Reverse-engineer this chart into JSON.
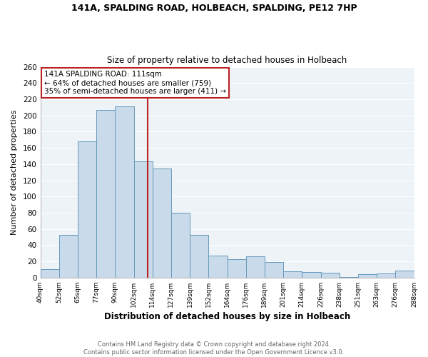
{
  "title1": "141A, SPALDING ROAD, HOLBEACH, SPALDING, PE12 7HP",
  "title2": "Size of property relative to detached houses in Holbeach",
  "xlabel": "Distribution of detached houses by size in Holbeach",
  "ylabel": "Number of detached properties",
  "bar_labels": [
    "40sqm",
    "52sqm",
    "65sqm",
    "77sqm",
    "90sqm",
    "102sqm",
    "114sqm",
    "127sqm",
    "139sqm",
    "152sqm",
    "164sqm",
    "176sqm",
    "189sqm",
    "201sqm",
    "214sqm",
    "226sqm",
    "238sqm",
    "251sqm",
    "263sqm",
    "276sqm",
    "288sqm"
  ],
  "bar_values": [
    10,
    53,
    168,
    207,
    211,
    143,
    135,
    80,
    53,
    27,
    23,
    26,
    19,
    8,
    7,
    6,
    1,
    4,
    5,
    9
  ],
  "bar_color": "#c9daea",
  "bar_edge_color": "#6699bb",
  "property_line_label": "141A SPALDING ROAD: 111sqm",
  "annotation_line1": "← 64% of detached houses are smaller (759)",
  "annotation_line2": "35% of semi-detached houses are larger (411) →",
  "box_color": "#bb2222",
  "sqm_edges": [
    40,
    52,
    65,
    77,
    90,
    102,
    114,
    127,
    139,
    152,
    164,
    176,
    189,
    201,
    214,
    226,
    238,
    251,
    263,
    276,
    288
  ],
  "property_sqm": 111,
  "ylim": [
    0,
    260
  ],
  "yticks": [
    0,
    20,
    40,
    60,
    80,
    100,
    120,
    140,
    160,
    180,
    200,
    220,
    240,
    260
  ],
  "footer1": "Contains HM Land Registry data © Crown copyright and database right 2024.",
  "footer2": "Contains public sector information licensed under the Open Government Licence v3.0.",
  "background_color": "#ffffff",
  "plot_bg_color": "#eef3f8",
  "grid_color": "#ffffff"
}
